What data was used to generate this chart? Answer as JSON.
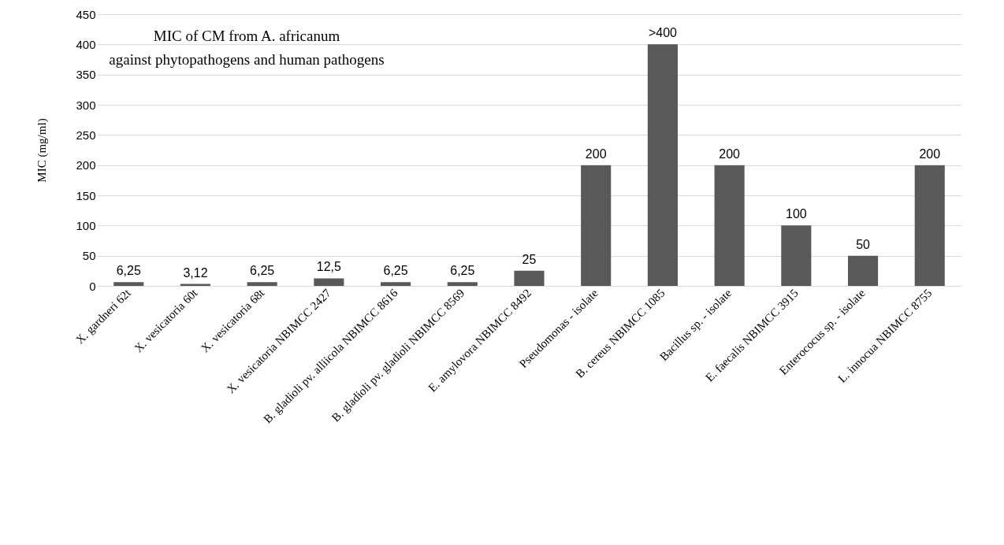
{
  "chart_data": {
    "type": "bar",
    "title": "MIC of CM from A. africanum\nagainst phytopathogens and human pathogens",
    "ylabel": "MIC (mg/ml)",
    "categories": [
      "X. gardneri 62t",
      "X. vesicatoria 60t",
      "X. vesicatoria 68t",
      "X. vesicatoria NBIMCC 2427",
      "B. gladioli pv. alliicola NBIMCC 8616",
      "B. gladioli pv. gladioli NBIMCC 8569",
      "E. amylovora NBIMCC 8492",
      "Pseudomonas - isolate",
      "B. cereus NBIMCC 1085",
      "Bacillus sp. - isolate",
      "E. faecalis NBIMCC 3915",
      "Enterococus sp. - isolate",
      "L. innocua NBIMCC 8755"
    ],
    "values": [
      6.25,
      3.12,
      6.25,
      12.5,
      6.25,
      6.25,
      25,
      200,
      400,
      200,
      100,
      50,
      200
    ],
    "value_labels": [
      "6,25",
      "3,12",
      "6,25",
      "12,5",
      "6,25",
      "6,25",
      "25",
      "200",
      ">400",
      "200",
      "100",
      "50",
      "200"
    ],
    "color": "#595959",
    "ylim": [
      0,
      450
    ],
    "yticks": [
      0,
      50,
      100,
      150,
      200,
      250,
      300,
      350,
      400,
      450
    ],
    "grid": "y"
  }
}
